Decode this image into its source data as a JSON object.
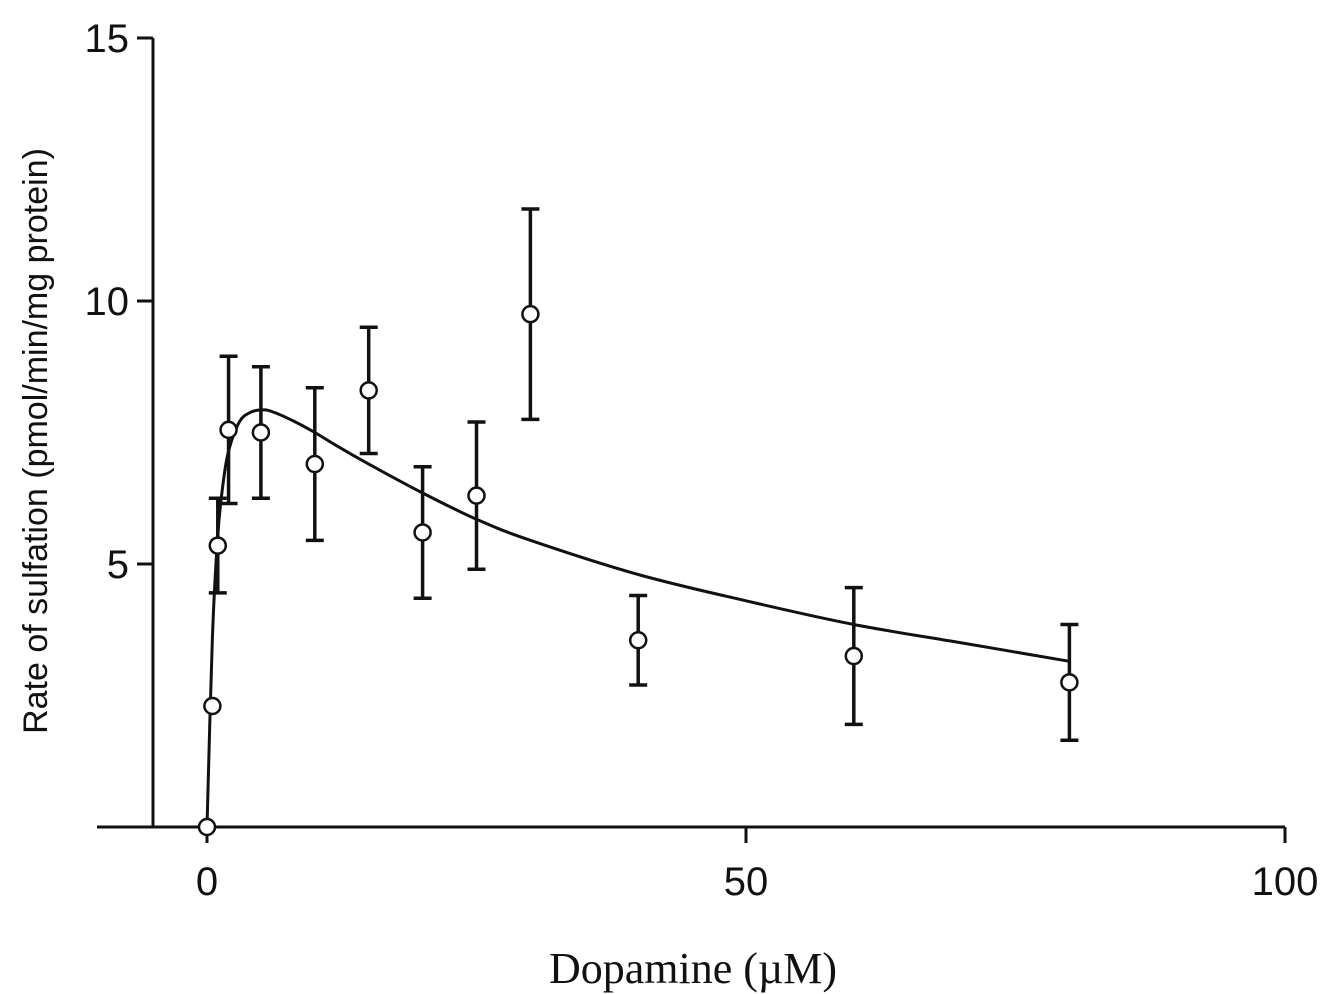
{
  "chart_data": {
    "type": "scatter",
    "title": "",
    "xlabel": "Dopamine (µM)",
    "ylabel": "Rate of sulfation (pmol/min/mg protein)",
    "xlim": [
      -5,
      100
    ],
    "ylim": [
      0,
      15
    ],
    "x_ticks": [
      0,
      50,
      100
    ],
    "y_ticks": [
      5,
      10,
      15
    ],
    "x_tick_labels": [
      "0",
      "50",
      "100"
    ],
    "y_tick_labels": [
      "5",
      "10",
      "15"
    ],
    "grid": false,
    "legend": "none",
    "series": [
      {
        "marker": "open-circle",
        "color": "#111111",
        "points": [
          {
            "x": 0,
            "y": 0.0,
            "err": 0
          },
          {
            "x": 0.5,
            "y": 2.3,
            "err": 0
          },
          {
            "x": 1,
            "y": 5.35,
            "err": 0.9
          },
          {
            "x": 2,
            "y": 7.55,
            "err": 1.4
          },
          {
            "x": 5,
            "y": 7.5,
            "err": 1.25
          },
          {
            "x": 10,
            "y": 6.9,
            "err": 1.45
          },
          {
            "x": 15,
            "y": 8.3,
            "err": 1.2
          },
          {
            "x": 20,
            "y": 5.6,
            "err": 1.25
          },
          {
            "x": 25,
            "y": 6.3,
            "err": 1.4
          },
          {
            "x": 30,
            "y": 9.75,
            "err": 2.0
          },
          {
            "x": 40,
            "y": 3.55,
            "err": 0.85
          },
          {
            "x": 60,
            "y": 3.25,
            "err": 1.3
          },
          {
            "x": 80,
            "y": 2.75,
            "err": 1.1
          }
        ]
      }
    ],
    "fit_curve": {
      "model": "substrate inhibition",
      "x": [
        0,
        0.5,
        1,
        1.5,
        2,
        3,
        4,
        5,
        6,
        8,
        10,
        12,
        15,
        20,
        25,
        30,
        40,
        50,
        60,
        70,
        80
      ],
      "y": [
        0.0,
        3.6,
        5.55,
        6.55,
        7.15,
        7.7,
        7.88,
        7.93,
        7.9,
        7.72,
        7.5,
        7.25,
        6.9,
        6.35,
        5.85,
        5.45,
        4.8,
        4.3,
        3.85,
        3.5,
        3.15
      ]
    }
  }
}
